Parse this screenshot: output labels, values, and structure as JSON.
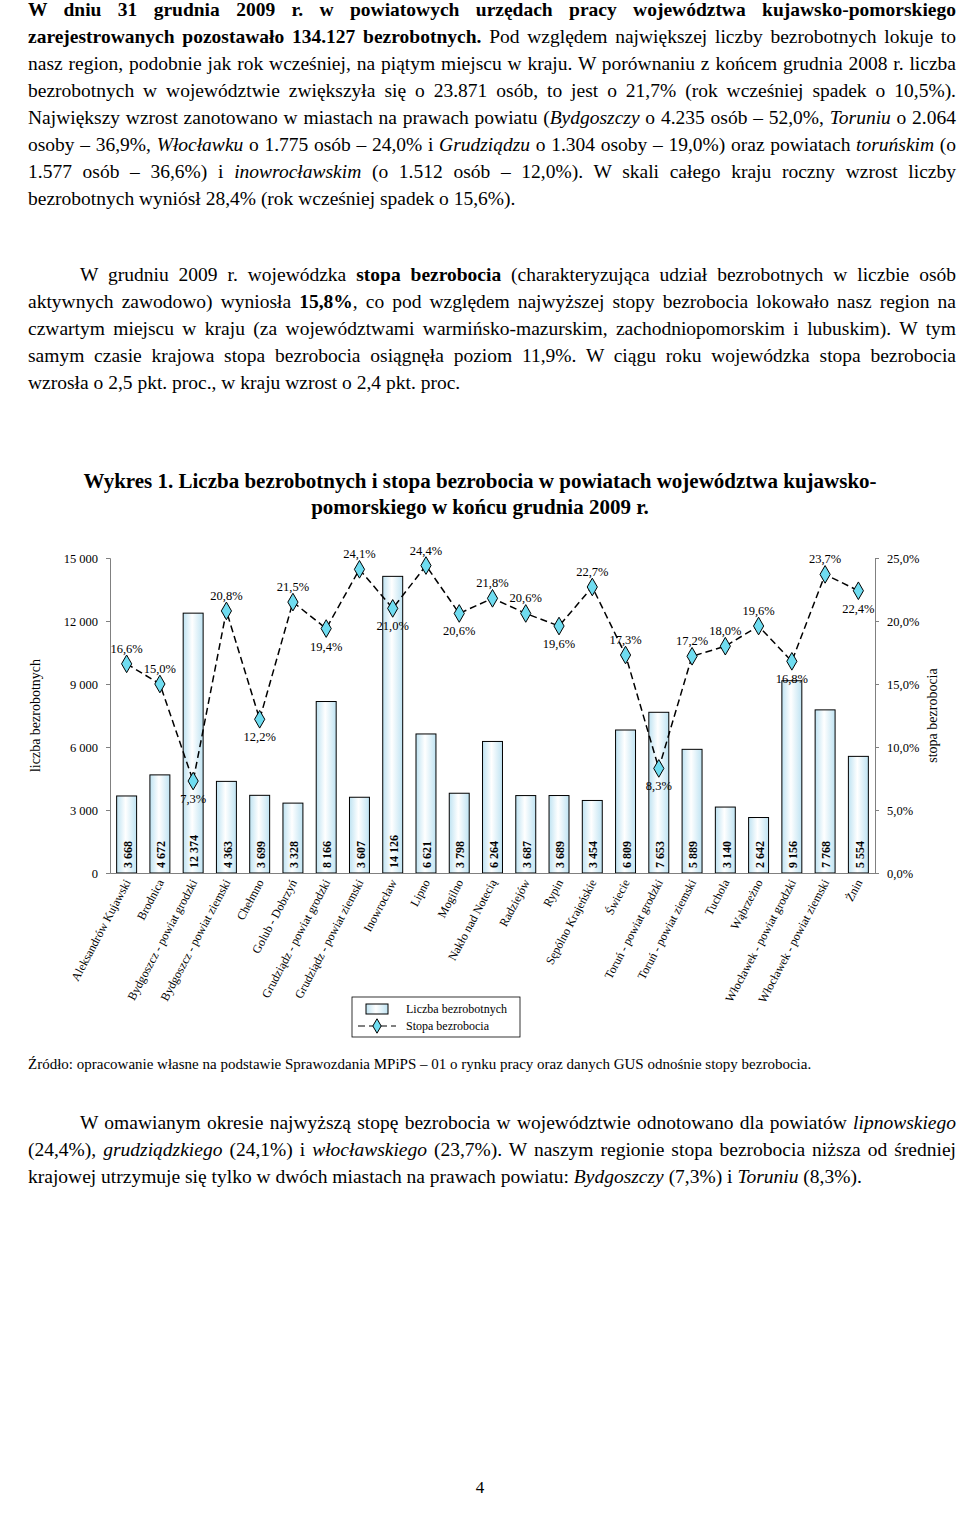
{
  "text_before": [
    {
      "runs": [
        {
          "text": "W dniu 31 grudnia 2009 r. w powiatowych urzędach pracy województwa kujawsko-pomorskiego zarejestrowanych pozostawało 134.127 bezrobotnych.",
          "style": "bold"
        },
        {
          "text": " Pod względem największej liczby bezrobotnych lokuje to nasz region, podobnie jak rok wcześniej, na piątym miejscu w kraju. W porównaniu z końcem grudnia 2008 r. liczba bezrobotnych w województwie zwiększyła się o 23.871 osób, to jest o 21,7% (rok wcześniej spadek o 10,5%). Największy wzrost zanotowano w miastach na prawach powiatu ("
        },
        {
          "text": "Bydgoszczy",
          "style": "italic"
        },
        {
          "text": " o 4.235 osób – 52,0%, "
        },
        {
          "text": "Toruniu",
          "style": "italic"
        },
        {
          "text": " o 2.064 osoby – 36,9%, "
        },
        {
          "text": "Włocławku",
          "style": "italic"
        },
        {
          "text": " o 1.775 osób – 24,0% i "
        },
        {
          "text": "Grudziądzu",
          "style": "italic"
        },
        {
          "text": " o 1.304 osoby – 19,0%) oraz powiatach "
        },
        {
          "text": "toruńskim",
          "style": "italic"
        },
        {
          "text": " (o 1.577 osób – 36,6%) i "
        },
        {
          "text": "inowrocławskim",
          "style": "italic"
        },
        {
          "text": " (o 1.512 osób – 12,0%). W skali całego kraju roczny wzrost liczby bezrobotnych wyniósł 28,4% (rok wcześniej spadek o 15,6%)."
        }
      ]
    },
    {
      "runs": [
        {
          "text": "W grudniu 2009 r. wojewódzka "
        },
        {
          "text": "stopa bezrobocia",
          "style": "bold"
        },
        {
          "text": " (charakteryzująca udział bezrobotnych w liczbie osób aktywnych zawodowo) wyniosła "
        },
        {
          "text": "15,8%",
          "style": "bold"
        },
        {
          "text": ", co pod względem najwyższej stopy bezrobocia lokowało nasz region na czwartym miejscu w kraju (za województwami warmińsko-mazurskim, zachodniopomorskim i lubuskim). W tym samym czasie krajowa stopa bezrobocia osiągnęła poziom 11,9%. W ciągu roku wojewódzka stopa bezrobocia wzrosła o 2,5 pkt. proc., w kraju wzrost o 2,4 pkt. proc."
        }
      ]
    }
  ],
  "chart_data": {
    "type": "bar",
    "title": "Wykres 1. Liczba bezrobotnych i stopa bezrobocia w powiatach województwa kujawsko-pomorskiego w końcu grudnia 2009 r.",
    "categories": [
      "Aleksandrów Kujawski",
      "Brodnica",
      "Bydgoszcz - powiat grodzki",
      "Bydgoszcz - powiat ziemski",
      "Chełmno",
      "Golub - Dobrzyń",
      "Grudziądz - powiat grodzki",
      "Grudziądz - powiat ziemski",
      "Inowrocław",
      "Lipno",
      "Mogilno",
      "Nakło nad Notecią",
      "Radziejów",
      "Rypin",
      "Sępólno Krajeńskie",
      "Świecie",
      "Toruń - powiat grodzki",
      "Toruń - powiat ziemski",
      "Tuchola",
      "Wąbrzeżno",
      "Włocławek - powiat grodzki",
      "Włocławek - powiat ziemski",
      "Żnin"
    ],
    "series": [
      {
        "name": "Liczba bezrobotnych",
        "type": "bar",
        "color": "#bfe3f2",
        "values": [
          3668,
          4672,
          12374,
          4363,
          3699,
          3328,
          8166,
          3607,
          14126,
          6621,
          3798,
          6264,
          3687,
          3689,
          3454,
          6809,
          7653,
          5889,
          3140,
          2642,
          9156,
          7768,
          5554
        ],
        "value_labels": [
          "3 668",
          "4 672",
          "12 374",
          "4 363",
          "3 699",
          "3 328",
          "8 166",
          "3 607",
          "14 126",
          "6 621",
          "3 798",
          "6 264",
          "3 687",
          "3 689",
          "3 454",
          "6 809",
          "7 653",
          "5 889",
          "3 140",
          "2 642",
          "9 156",
          "7 768",
          "5 554"
        ]
      },
      {
        "name": "Stopa bezrobocia",
        "type": "line",
        "axis": "y2",
        "color": "#6fdcf0",
        "marker": "diamond",
        "line_style": "dashed",
        "values": [
          16.6,
          15.0,
          7.3,
          20.8,
          12.2,
          21.5,
          19.4,
          24.1,
          21.0,
          24.4,
          20.6,
          21.8,
          20.6,
          19.6,
          22.7,
          17.3,
          8.3,
          17.2,
          18.0,
          19.6,
          16.8,
          23.7,
          22.4
        ],
        "value_labels": [
          "16,6%",
          "15,0%",
          "7,3%",
          "20,8%",
          "12,2%",
          "21,5%",
          "19,4%",
          "24,1%",
          "21,0%",
          "24,4%",
          "20,6%",
          "21,8%",
          "20,6%",
          "19,6%",
          "22,7%",
          "17,3%",
          "8,3%",
          "17,2%",
          "18,0%",
          "19,6%",
          "16,8%",
          "23,7%",
          "22,4%"
        ]
      }
    ],
    "ylabel": "liczba bezrobotnych",
    "y2label": "stopa bezrobocia",
    "ylim": [
      0,
      15000
    ],
    "yticks": [
      0,
      {
        "value": 3000,
        "label": "3 000"
      },
      {
        "value": 6000,
        "label": "6 000"
      },
      {
        "value": 9000,
        "label": "9 000"
      },
      {
        "value": 12000,
        "label": "12 000"
      },
      {
        "value": 15000,
        "label": "15 000"
      }
    ],
    "y2lim": [
      0,
      25
    ],
    "y2ticks": [
      {
        "value": 0,
        "label": "0,0%"
      },
      {
        "value": 5,
        "label": "5,0%"
      },
      {
        "value": 10,
        "label": "10,0%"
      },
      {
        "value": 15,
        "label": "15,0%"
      },
      {
        "value": 20,
        "label": "20,0%"
      },
      {
        "value": 25,
        "label": "25,0%"
      }
    ],
    "data_labels": true,
    "legend": "bottom",
    "grid": false
  },
  "source": "Źródło: opracowanie własne na podstawie Sprawozdania MPiPS – 01 o rynku pracy oraz danych GUS odnośnie stopy bezrobocia.",
  "text_after": [
    {
      "runs": [
        {
          "text": "W omawianym okresie najwyższą stopę bezrobocia w województwie odnotowano dla powiatów "
        },
        {
          "text": "lipnowskiego",
          "style": "italic"
        },
        {
          "text": " (24,4%), "
        },
        {
          "text": "grudziądzkiego",
          "style": "italic"
        },
        {
          "text": " (24,1%) i "
        },
        {
          "text": "włocławskiego",
          "style": "italic"
        },
        {
          "text": " (23,7%). W naszym regionie stopa bezrobocia niższa od średniej krajowej utrzymuje się tylko w dwóch miastach na prawach powiatu: "
        },
        {
          "text": "Bydgoszczy",
          "style": "italic"
        },
        {
          "text": " (7,3%) i "
        },
        {
          "text": "Toruniu",
          "style": "italic"
        },
        {
          "text": " (8,3%)."
        }
      ]
    }
  ],
  "page_number": "4"
}
